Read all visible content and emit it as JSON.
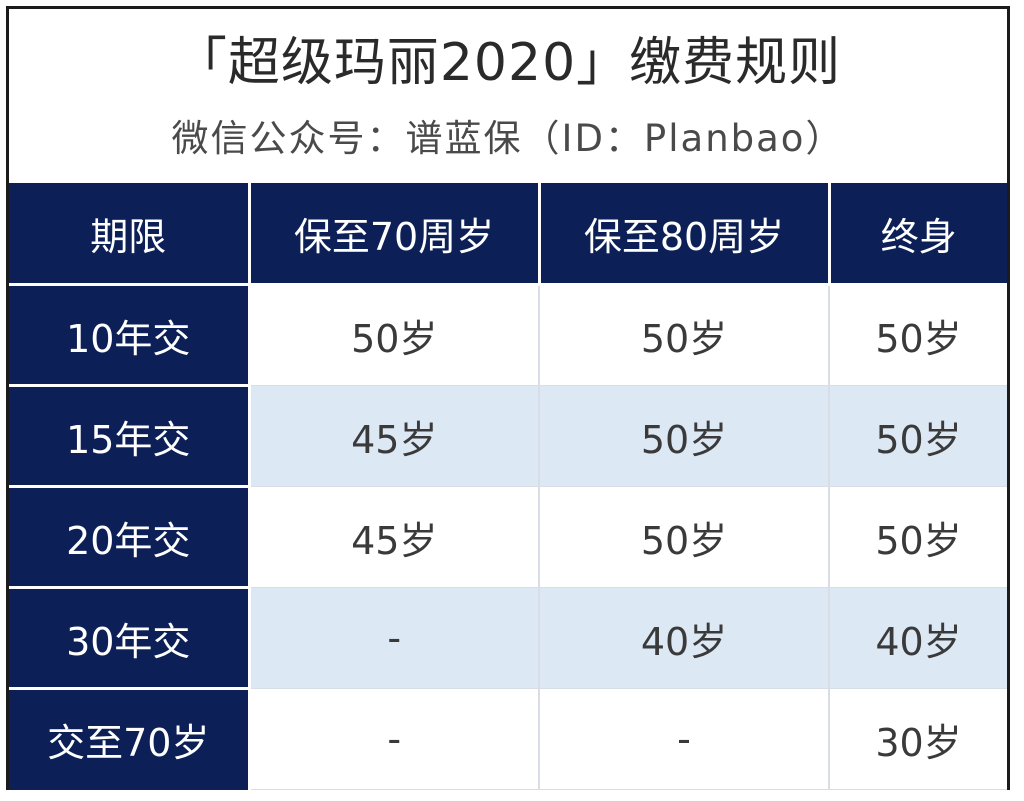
{
  "header": {
    "title": "「超级玛丽2020」缴费规则",
    "subtitle": "微信公众号：谱蓝保（ID：Planbao）"
  },
  "table": {
    "columns": [
      "期限",
      "保至70周岁",
      "保至80周岁",
      "终身"
    ],
    "rows": [
      {
        "label": "10年交",
        "cells": [
          "50岁",
          "50岁",
          "50岁"
        ]
      },
      {
        "label": "15年交",
        "cells": [
          "45岁",
          "50岁",
          "50岁"
        ]
      },
      {
        "label": "20年交",
        "cells": [
          "45岁",
          "50岁",
          "50岁"
        ]
      },
      {
        "label": "30年交",
        "cells": [
          "-",
          "40岁",
          "40岁"
        ]
      },
      {
        "label": "交至70岁",
        "cells": [
          "-",
          "-",
          "30岁"
        ]
      }
    ]
  },
  "colors": {
    "header_navy": "#0c2057",
    "row_alt_blue": "#dde8f5",
    "title_text": "#2a2a2a"
  }
}
